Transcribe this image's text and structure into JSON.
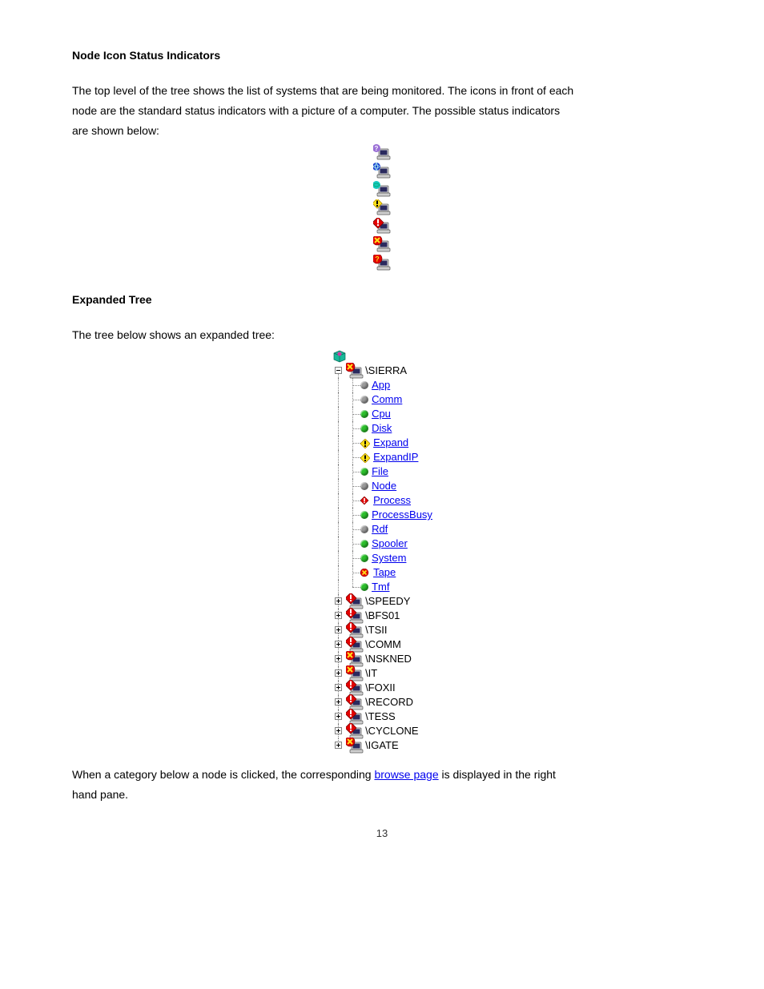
{
  "heading": "Node Icon Status Indicators",
  "intro_p1": "The top level of the tree shows the list of systems that are being monitored.  The icons in front of each",
  "intro_p2": "node are the standard status indicators with a picture of a computer.  The possible status indicators",
  "intro_p3": "are shown below:",
  "legend": {
    "items": [
      {
        "id": "unknown",
        "overlay": "question-gray"
      },
      {
        "id": "info",
        "overlay": "globe-blue"
      },
      {
        "id": "ok",
        "overlay": "globe-teal"
      },
      {
        "id": "warning-yellow",
        "overlay": "diamond-yellow"
      },
      {
        "id": "warning-red",
        "overlay": "diamond-red"
      },
      {
        "id": "critical",
        "overlay": "circle-red-x"
      },
      {
        "id": "fatal",
        "overlay": "circle-red-q"
      }
    ]
  },
  "tree_heading": "Expanded Tree",
  "tree_intro": "The tree below shows an expanded tree:",
  "tree": {
    "root_icon": "cube",
    "expanded_node": {
      "name": "\\SIERRA",
      "status_icon": "circle-red-x",
      "children": [
        {
          "label": "App",
          "status": "gray"
        },
        {
          "label": "Comm",
          "status": "gray"
        },
        {
          "label": "Cpu",
          "status": "green"
        },
        {
          "label": "Disk",
          "status": "green"
        },
        {
          "label": "Expand",
          "status": "diamond-yellow"
        },
        {
          "label": "ExpandIP",
          "status": "diamond-yellow"
        },
        {
          "label": "File",
          "status": "green"
        },
        {
          "label": "Node",
          "status": "gray"
        },
        {
          "label": "Process",
          "status": "diamond-red"
        },
        {
          "label": "ProcessBusy",
          "status": "green"
        },
        {
          "label": "Rdf",
          "status": "gray"
        },
        {
          "label": "Spooler",
          "status": "green"
        },
        {
          "label": "System",
          "status": "green"
        },
        {
          "label": "Tape",
          "status": "circle-red-x"
        },
        {
          "label": "Tmf",
          "status": "green"
        }
      ]
    },
    "collapsed_nodes": [
      {
        "name": "\\SPEEDY",
        "status_icon": "diamond-red"
      },
      {
        "name": "\\BFS01",
        "status_icon": "diamond-red"
      },
      {
        "name": "\\TSII",
        "status_icon": "diamond-red"
      },
      {
        "name": "\\COMM",
        "status_icon": "diamond-red"
      },
      {
        "name": "\\NSKNED",
        "status_icon": "circle-red-x"
      },
      {
        "name": "\\IT",
        "status_icon": "circle-red-x"
      },
      {
        "name": "\\FOXII",
        "status_icon": "diamond-red"
      },
      {
        "name": "\\RECORD",
        "status_icon": "diamond-red"
      },
      {
        "name": "\\TESS",
        "status_icon": "diamond-red"
      },
      {
        "name": "\\CYCLONE",
        "status_icon": "diamond-red"
      },
      {
        "name": "\\IGATE",
        "status_icon": "circle-red-x"
      }
    ]
  },
  "after_p1a": "When a category below a node is clicked, the corresponding ",
  "after_link": "browse page",
  "after_p1b": " is displayed in the right",
  "after_p2": "hand pane.",
  "footer": "13"
}
